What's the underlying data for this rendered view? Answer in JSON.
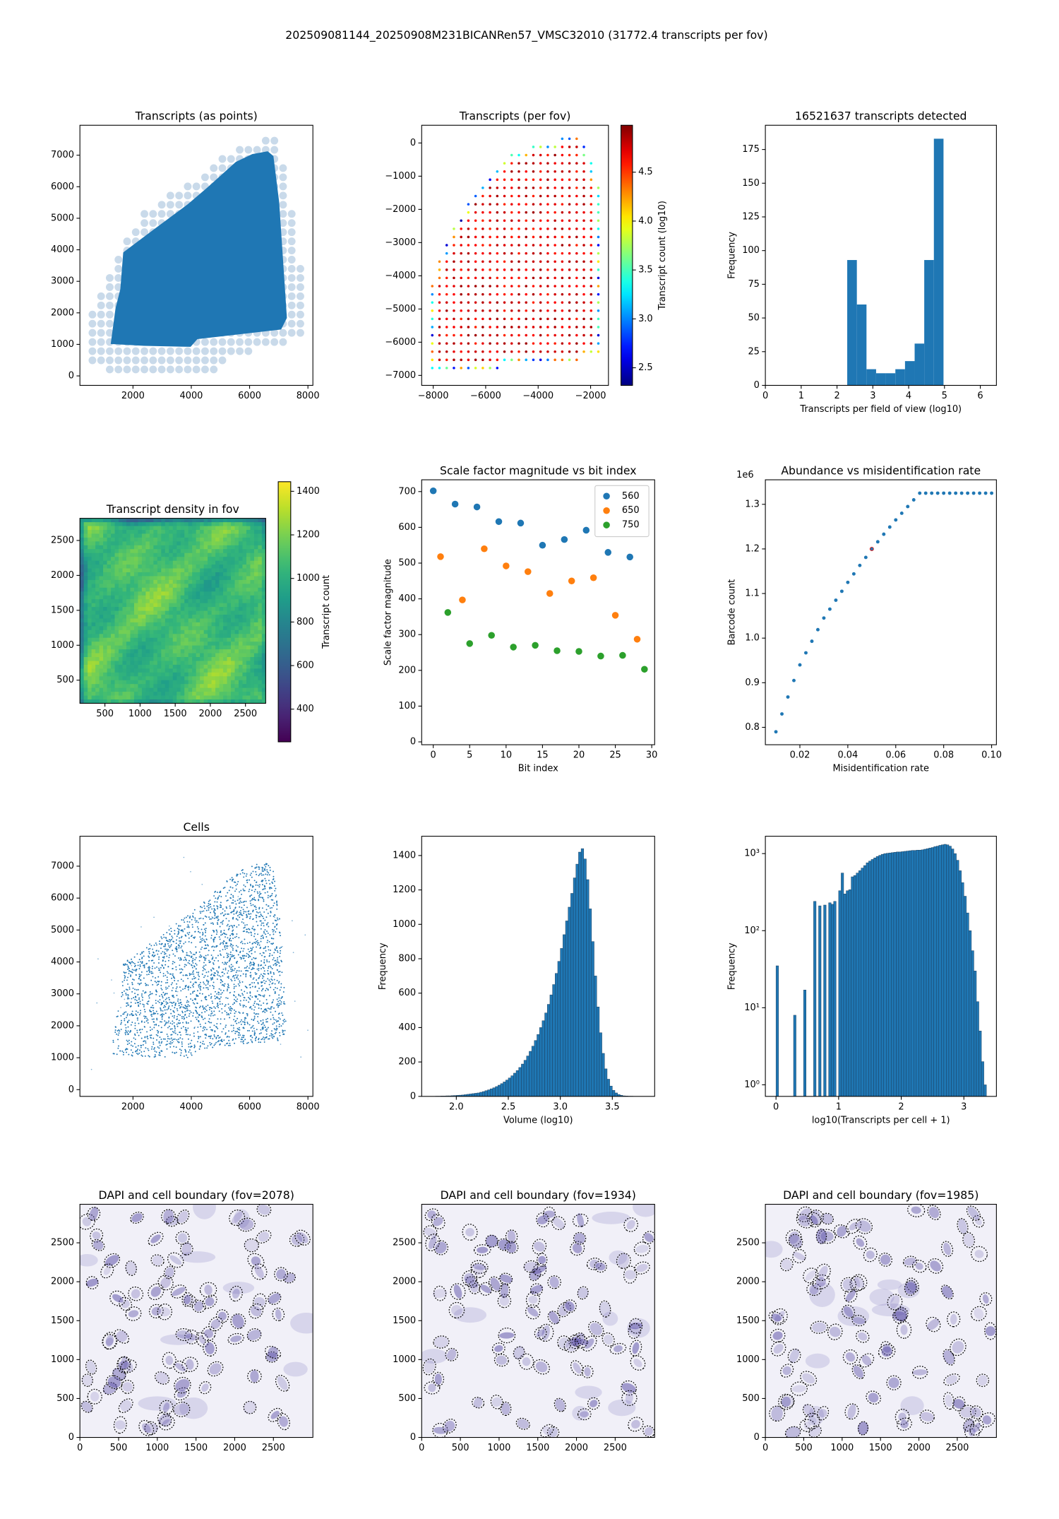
{
  "title": "202509081144_20250908M231BICANRen57_VMSC32010 (31772.4 transcripts per fov)",
  "chart_data": [
    {
      "type": "image",
      "title": "Transcripts (as points)",
      "color": "#1f77b4",
      "xlim": [
        180,
        8170
      ],
      "ylim": [
        -300,
        7950
      ],
      "xticks": [
        2000,
        4000,
        6000,
        8000
      ],
      "yticks": [
        0,
        1000,
        2000,
        3000,
        4000,
        5000,
        6000,
        7000
      ]
    },
    {
      "type": "image",
      "title": "Transcripts (per fov)",
      "xlim": [
        -8440,
        -1320
      ],
      "ylim": [
        -7300,
        534
      ],
      "xticks": [
        {
          "value": -8000,
          "label": "−8000"
        },
        {
          "value": -6000,
          "label": "−6000"
        },
        {
          "value": -4000,
          "label": "−4000"
        },
        {
          "value": -2000,
          "label": "−2000"
        }
      ],
      "yticks": [
        0,
        {
          "value": -1000,
          "label": "−1000"
        },
        {
          "value": -2000,
          "label": "−2000"
        },
        {
          "value": -3000,
          "label": "−3000"
        },
        {
          "value": -4000,
          "label": "−4000"
        },
        {
          "value": -5000,
          "label": "−5000"
        },
        {
          "value": -6000,
          "label": "−6000"
        },
        {
          "value": -7000,
          "label": "−7000"
        }
      ],
      "colorbar": {
        "label": "Transcript count (log10)",
        "colormap": "jet",
        "lim": [
          2.32,
          4.98
        ],
        "ticks": [
          2.5,
          {
            "value": 3,
            "label": "3.0"
          },
          3.5,
          {
            "value": 4,
            "label": "4.0"
          },
          4.5
        ]
      }
    },
    {
      "type": "histogram",
      "title": "16521637 transcripts detected",
      "xlabel": "Transcripts per field of view (log10)",
      "ylabel": "Frequency",
      "color": "#1f77b4",
      "bins": [
        2.285,
        2.554,
        2.823,
        3.091,
        3.36,
        3.629,
        3.898,
        4.167,
        4.435,
        4.704,
        4.973
      ],
      "values": [
        93,
        60,
        12,
        9,
        9,
        12,
        18,
        31,
        93,
        183
      ],
      "xlim": [
        0,
        6.45
      ],
      "ylim": [
        0,
        193
      ],
      "xticks": [
        0,
        1,
        2,
        3,
        4,
        5,
        6
      ],
      "yticks": [
        0,
        25,
        50,
        75,
        100,
        125,
        150,
        175
      ]
    },
    {
      "type": "image",
      "title": "Transcript density in fov",
      "xlim": [
        144,
        2788
      ],
      "ylim": [
        169,
        2817
      ],
      "xticks": [
        500,
        1000,
        1500,
        2000,
        2500
      ],
      "yticks": [
        500,
        1000,
        1500,
        2000,
        2500
      ],
      "colorbar": {
        "label": "Transcript count",
        "colormap": "viridis",
        "lim": [
          250,
          1444
        ],
        "ticks": [
          400,
          600,
          800,
          1000,
          1200,
          1400
        ]
      }
    },
    {
      "type": "scatter",
      "title": "Scale factor magnitude vs bit index",
      "xlabel": "Bit index",
      "ylabel": "Scale factor magnitude",
      "markersize": 3.5,
      "legend": "upper right",
      "xlim": [
        -1.59,
        30.4
      ],
      "ylim": [
        -8,
        733
      ],
      "xticks": [
        0,
        5,
        10,
        15,
        20,
        25,
        30
      ],
      "yticks": [
        0,
        100,
        200,
        300,
        400,
        500,
        600,
        700
      ],
      "series": [
        {
          "name": "560",
          "color": "#1f77b4",
          "x": [
            0,
            3,
            6,
            9,
            12,
            15,
            18,
            21,
            24,
            27
          ],
          "values": [
            702,
            665,
            657,
            616,
            612,
            550,
            566,
            592,
            530,
            517
          ]
        },
        {
          "name": "650",
          "color": "#ff7f0e",
          "x": [
            1,
            4,
            7,
            10,
            13,
            16,
            19,
            22,
            25,
            28
          ],
          "values": [
            518,
            397,
            540,
            492,
            476,
            415,
            450,
            459,
            354,
            287
          ]
        },
        {
          "name": "750",
          "color": "#2ca02c",
          "x": [
            2,
            5,
            8,
            11,
            14,
            17,
            20,
            23,
            26,
            29
          ],
          "values": [
            362,
            275,
            298,
            265,
            270,
            255,
            253,
            240,
            242,
            203
          ]
        }
      ]
    },
    {
      "type": "scatter",
      "title": "Abundance vs misidentification rate",
      "xlabel": "Misidentification rate",
      "ylabel": "Barcode count",
      "y_offset_text": "1e6",
      "markersize": 1.8,
      "xlim": [
        0.0056,
        0.102
      ],
      "ylim": [
        0.761,
        1.355
      ],
      "xticks": [
        0.02,
        0.04,
        0.06,
        0.08,
        {
          "value": 0.1,
          "label": "0.10"
        }
      ],
      "yticks": [
        0.8,
        0.9,
        {
          "value": 1,
          "label": "1.0"
        },
        1.1,
        1.2,
        1.3
      ],
      "series": [
        {
          "color": "#1f77b4",
          "x": [
            0.01,
            0.0125,
            0.015,
            0.0175,
            0.02,
            0.0225,
            0.025,
            0.0275,
            0.03,
            0.0325,
            0.035,
            0.0375,
            0.04,
            0.0425,
            0.045,
            0.0475,
            0.05,
            0.0525,
            0.055,
            0.0575,
            0.06,
            0.0625,
            0.065,
            0.0675,
            0.07,
            0.0725,
            0.075,
            0.0775,
            0.08,
            0.0825,
            0.085,
            0.0875,
            0.09,
            0.0925,
            0.095,
            0.0975,
            0.1
          ],
          "values": [
            0.79,
            0.83,
            0.868,
            0.905,
            0.94,
            0.967,
            0.993,
            1.019,
            1.045,
            1.065,
            1.085,
            1.105,
            1.125,
            1.144,
            1.163,
            1.181,
            1.2,
            1.216,
            1.233,
            1.249,
            1.265,
            1.28,
            1.295,
            1.31,
            1.325,
            1.325,
            1.325,
            1.325,
            1.325,
            1.325,
            1.325,
            1.325,
            1.325,
            1.325,
            1.325,
            1.325,
            1.325
          ]
        },
        {
          "color": "#d62728",
          "facecolor": "none",
          "x": [
            0.05
          ],
          "values": [
            1.2
          ]
        }
      ]
    },
    {
      "type": "image",
      "title": "Cells",
      "color": "#1f77b4",
      "xlim": [
        180,
        8170
      ],
      "ylim": [
        -211,
        7937
      ],
      "xticks": [
        2000,
        4000,
        6000,
        8000
      ],
      "yticks": [
        0,
        1000,
        2000,
        3000,
        4000,
        5000,
        6000,
        7000
      ]
    },
    {
      "type": "histogram",
      "xlabel": "Volume (log10)",
      "ylabel": "Frequency",
      "color": "#1f77b4",
      "edgecolor": "#1a3d5c",
      "bins": [
        1.8,
        1.825,
        1.85,
        1.875,
        1.9,
        1.925,
        1.95,
        1.975,
        2.0,
        2.025,
        2.05,
        2.075,
        2.1,
        2.125,
        2.15,
        2.175,
        2.2,
        2.225,
        2.25,
        2.275,
        2.3,
        2.325,
        2.35,
        2.375,
        2.4,
        2.425,
        2.45,
        2.475,
        2.5,
        2.525,
        2.55,
        2.575,
        2.6,
        2.625,
        2.65,
        2.675,
        2.7,
        2.725,
        2.75,
        2.775,
        2.8,
        2.825,
        2.85,
        2.875,
        2.9,
        2.925,
        2.95,
        2.975,
        3.0,
        3.025,
        3.05,
        3.075,
        3.1,
        3.125,
        3.15,
        3.175,
        3.2,
        3.225,
        3.25,
        3.275,
        3.3,
        3.325,
        3.35,
        3.375,
        3.4,
        3.425,
        3.45,
        3.475,
        3.5,
        3.525,
        3.55,
        3.575,
        3.6,
        3.625,
        3.65,
        3.675,
        3.7,
        3.725,
        3.75
      ],
      "values": [
        1,
        1,
        2,
        2,
        3,
        3,
        4,
        5,
        6,
        7,
        8,
        10,
        12,
        14,
        16,
        18,
        20,
        24,
        28,
        33,
        38,
        44,
        50,
        57,
        65,
        74,
        84,
        95,
        107,
        120,
        135,
        150,
        168,
        188,
        210,
        235,
        262,
        292,
        325,
        360,
        400,
        440,
        485,
        535,
        590,
        650,
        715,
        785,
        860,
        940,
        1020,
        1100,
        1180,
        1270,
        1350,
        1420,
        1440,
        1380,
        1260,
        1090,
        900,
        700,
        520,
        370,
        250,
        160,
        100,
        60,
        35,
        20,
        11,
        6,
        3,
        2,
        1,
        1,
        0,
        0
      ],
      "xlim": [
        1.667,
        3.907
      ],
      "ylim": [
        0,
        1512
      ],
      "xticks": [
        {
          "value": 2,
          "label": "2.0"
        },
        2.5,
        {
          "value": 3,
          "label": "3.0"
        },
        3.5
      ],
      "yticks": [
        0,
        200,
        400,
        600,
        800,
        1000,
        1200,
        1400
      ]
    },
    {
      "type": "histogram",
      "xlabel": "log10(Transcripts per cell + 1)",
      "ylabel": "Frequency",
      "color": "#1f77b4",
      "edgecolor": "#1a3d5c",
      "yscale": "log",
      "bins": [
        0,
        0.04,
        0.08,
        0.12,
        0.16,
        0.2,
        0.24,
        0.28,
        0.32,
        0.36,
        0.4,
        0.44,
        0.48,
        0.52,
        0.56,
        0.6,
        0.64,
        0.68,
        0.72,
        0.76,
        0.8,
        0.84,
        0.88,
        0.92,
        0.96,
        1.0,
        1.04,
        1.08,
        1.12,
        1.16,
        1.2,
        1.24,
        1.28,
        1.32,
        1.36,
        1.4,
        1.44,
        1.48,
        1.52,
        1.56,
        1.6,
        1.64,
        1.68,
        1.72,
        1.76,
        1.8,
        1.84,
        1.88,
        1.92,
        1.96,
        2.0,
        2.04,
        2.08,
        2.12,
        2.16,
        2.2,
        2.24,
        2.28,
        2.32,
        2.36,
        2.4,
        2.44,
        2.48,
        2.52,
        2.56,
        2.6,
        2.64,
        2.68,
        2.72,
        2.76,
        2.8,
        2.84,
        2.88,
        2.92,
        2.96,
        3.0,
        3.04,
        3.08,
        3.12,
        3.16,
        3.2,
        3.24,
        3.28,
        3.32,
        3.36
      ],
      "values": [
        35,
        0,
        0,
        0,
        0,
        0,
        0,
        8,
        0,
        0,
        0,
        17,
        0,
        0,
        0,
        240,
        0,
        210,
        0,
        215,
        0,
        230,
        220,
        240,
        0,
        330,
        560,
        300,
        330,
        340,
        500,
        520,
        560,
        600,
        650,
        700,
        760,
        800,
        840,
        880,
        920,
        950,
        980,
        1000,
        1010,
        1020,
        1030,
        1040,
        1050,
        1050,
        1060,
        1070,
        1080,
        1090,
        1100,
        1100,
        1110,
        1110,
        1120,
        1140,
        1160,
        1180,
        1200,
        1230,
        1250,
        1280,
        1300,
        1320,
        1300,
        1250,
        1150,
        1000,
        820,
        600,
        420,
        280,
        170,
        100,
        55,
        30,
        12,
        5,
        2,
        1
      ],
      "xlim": [
        -0.17,
        3.52
      ],
      "ylim": [
        0.708,
        1679
      ],
      "xticks": [
        0,
        1,
        2,
        3
      ],
      "yticks": [
        {
          "value": 1,
          "label": "10⁰"
        },
        {
          "value": 10,
          "label": "10¹"
        },
        {
          "value": 100,
          "label": "10²"
        },
        {
          "value": 1000,
          "label": "10³"
        }
      ]
    },
    {
      "type": "image",
      "title": "DAPI and cell boundary (fov=2078)",
      "xlim": [
        0,
        3010
      ],
      "ylim": [
        0,
        2995
      ],
      "xticks": [
        0,
        500,
        1000,
        1500,
        2000,
        2500
      ],
      "yticks": [
        0,
        500,
        1000,
        1500,
        2000,
        2500
      ]
    },
    {
      "type": "image",
      "title": "DAPI and cell boundary (fov=1934)",
      "xlim": [
        0,
        3010
      ],
      "ylim": [
        0,
        2995
      ],
      "xticks": [
        0,
        500,
        1000,
        1500,
        2000,
        2500
      ],
      "yticks": [
        0,
        500,
        1000,
        1500,
        2000,
        2500
      ]
    },
    {
      "type": "image",
      "title": "DAPI and cell boundary (fov=1985)",
      "xlim": [
        0,
        3010
      ],
      "ylim": [
        0,
        2995
      ],
      "xticks": [
        0,
        500,
        1000,
        1500,
        2000,
        2500
      ],
      "yticks": [
        0,
        500,
        1000,
        1500,
        2000,
        2500
      ]
    }
  ]
}
